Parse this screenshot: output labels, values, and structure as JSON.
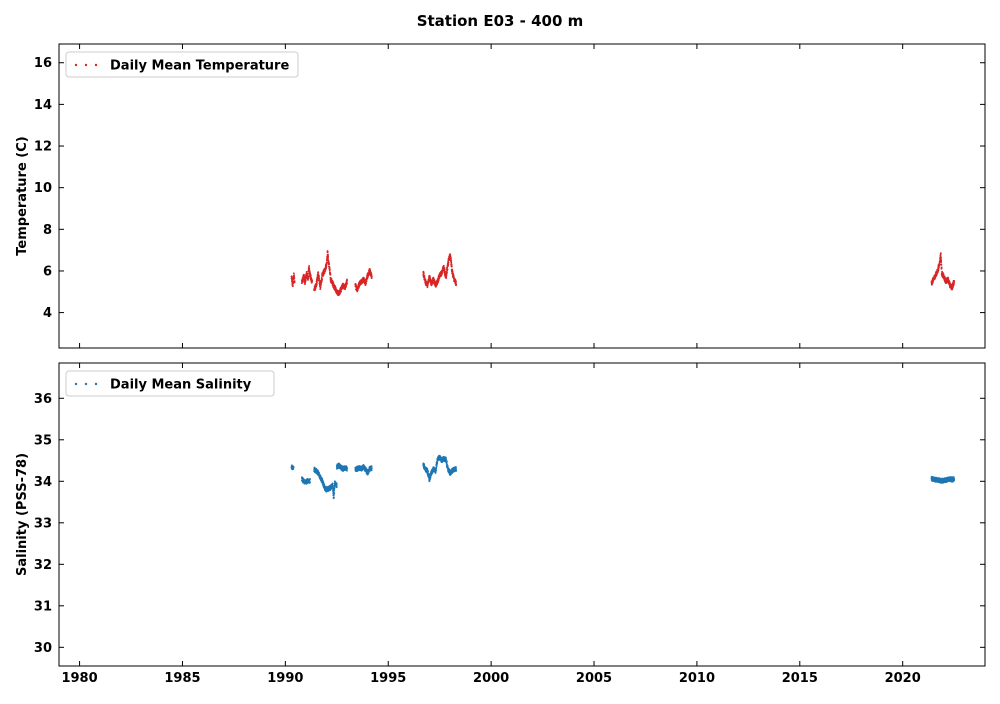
{
  "figure": {
    "title": "Station E03 - 400 m"
  },
  "chart_data": [
    {
      "type": "scatter",
      "series": [
        {
          "name": "Daily Mean Temperature",
          "color": "#d62728",
          "segments": [
            {
              "start": 1990.3,
              "end": 1990.45,
              "x": [
                1990.3,
                1990.33,
                1990.36,
                1990.39,
                1990.42,
                1990.45
              ],
              "y": [
                5.7,
                5.5,
                5.3,
                5.6,
                5.8,
                5.4
              ]
            },
            {
              "start": 1990.8,
              "end": 1991.3,
              "x": [
                1990.8,
                1990.85,
                1990.9,
                1990.95,
                1991.0,
                1991.05,
                1991.1,
                1991.15,
                1991.2,
                1991.25,
                1991.3
              ],
              "y": [
                5.5,
                5.6,
                5.8,
                5.4,
                5.7,
                5.9,
                5.6,
                6.2,
                5.8,
                5.6,
                5.5
              ]
            },
            {
              "start": 1991.4,
              "end": 1993.0,
              "x": [
                1991.4,
                1991.5,
                1991.6,
                1991.7,
                1991.8,
                1991.9,
                1992.0,
                1992.05,
                1992.1,
                1992.15,
                1992.2,
                1992.3,
                1992.4,
                1992.5,
                1992.6,
                1992.7,
                1992.8,
                1992.9,
                1993.0
              ],
              "y": [
                5.1,
                5.3,
                5.9,
                5.2,
                5.8,
                6.0,
                6.3,
                6.9,
                6.4,
                6.1,
                5.6,
                5.4,
                5.2,
                5.0,
                4.9,
                5.1,
                5.3,
                5.2,
                5.5
              ]
            },
            {
              "start": 1993.4,
              "end": 1994.2,
              "x": [
                1993.4,
                1993.5,
                1993.6,
                1993.7,
                1993.8,
                1993.9,
                1994.0,
                1994.1,
                1994.2
              ],
              "y": [
                5.3,
                5.1,
                5.4,
                5.5,
                5.6,
                5.4,
                5.8,
                6.0,
                5.7
              ]
            },
            {
              "start": 1996.7,
              "end": 1998.3,
              "x": [
                1996.7,
                1996.8,
                1996.9,
                1997.0,
                1997.1,
                1997.2,
                1997.3,
                1997.4,
                1997.5,
                1997.6,
                1997.7,
                1997.8,
                1997.9,
                1998.0,
                1998.05,
                1998.1,
                1998.2,
                1998.3
              ],
              "y": [
                5.9,
                5.5,
                5.3,
                5.7,
                5.4,
                5.6,
                5.3,
                5.5,
                5.8,
                5.9,
                6.2,
                5.7,
                6.3,
                6.8,
                6.5,
                6.0,
                5.6,
                5.4
              ]
            },
            {
              "start": 2021.4,
              "end": 2022.5,
              "x": [
                2021.4,
                2021.5,
                2021.6,
                2021.7,
                2021.8,
                2021.85,
                2021.9,
                2022.0,
                2022.1,
                2022.2,
                2022.3,
                2022.4,
                2022.5
              ],
              "y": [
                5.4,
                5.6,
                5.8,
                6.0,
                6.4,
                6.8,
                5.9,
                5.7,
                5.5,
                5.6,
                5.3,
                5.2,
                5.5
              ]
            }
          ]
        }
      ],
      "xlim": [
        1979,
        2024
      ],
      "ylim": [
        2.3,
        16.9
      ],
      "xticks": [
        1980,
        1985,
        1990,
        1995,
        2000,
        2005,
        2010,
        2015,
        2020
      ],
      "yticks": [
        4,
        6,
        8,
        10,
        12,
        14,
        16
      ],
      "xlabel": "",
      "ylabel": "Temperature (C)",
      "legend": "top-left",
      "grid": false
    },
    {
      "type": "scatter",
      "series": [
        {
          "name": "Daily Mean Salinity",
          "color": "#1f77b4",
          "segments": [
            {
              "start": 1990.3,
              "end": 1990.4,
              "x": [
                1990.3,
                1990.35,
                1990.4
              ],
              "y": [
                34.35,
                34.33,
                34.36
              ]
            },
            {
              "start": 1990.8,
              "end": 1991.2,
              "x": [
                1990.8,
                1990.9,
                1991.0,
                1991.1,
                1991.2
              ],
              "y": [
                34.05,
                34.0,
                33.98,
                34.02,
                34.0
              ]
            },
            {
              "start": 1991.4,
              "end": 1992.5,
              "x": [
                1991.4,
                1991.5,
                1991.6,
                1991.7,
                1991.8,
                1991.9,
                1992.0,
                1992.1,
                1992.2,
                1992.3,
                1992.35,
                1992.4,
                1992.5
              ],
              "y": [
                34.28,
                34.25,
                34.2,
                34.1,
                34.0,
                33.85,
                33.8,
                33.82,
                33.85,
                33.9,
                33.6,
                33.95,
                33.9
              ]
            },
            {
              "start": 1992.5,
              "end": 1993.0,
              "x": [
                1992.5,
                1992.6,
                1992.7,
                1992.8,
                1992.9,
                1993.0
              ],
              "y": [
                34.35,
                34.38,
                34.33,
                34.3,
                34.32,
                34.3
              ]
            },
            {
              "start": 1993.4,
              "end": 1994.2,
              "x": [
                1993.4,
                1993.5,
                1993.6,
                1993.7,
                1993.8,
                1993.9,
                1994.0,
                1994.1,
                1994.2
              ],
              "y": [
                34.28,
                34.3,
                34.32,
                34.3,
                34.35,
                34.28,
                34.2,
                34.3,
                34.32
              ]
            },
            {
              "start": 1996.7,
              "end": 1998.3,
              "x": [
                1996.7,
                1996.8,
                1996.9,
                1997.0,
                1997.1,
                1997.2,
                1997.3,
                1997.4,
                1997.5,
                1997.6,
                1997.7,
                1997.8,
                1997.9,
                1998.0,
                1998.1,
                1998.2,
                1998.3
              ],
              "y": [
                34.4,
                34.3,
                34.25,
                34.05,
                34.2,
                34.3,
                34.25,
                34.55,
                34.57,
                34.5,
                34.55,
                34.52,
                34.3,
                34.2,
                34.25,
                34.28,
                34.3
              ]
            },
            {
              "start": 2021.4,
              "end": 2022.5,
              "x": [
                2021.4,
                2021.5,
                2021.6,
                2021.7,
                2021.8,
                2021.9,
                2022.0,
                2022.1,
                2022.2,
                2022.3,
                2022.4,
                2022.5
              ],
              "y": [
                34.06,
                34.05,
                34.04,
                34.03,
                34.02,
                34.01,
                34.02,
                34.03,
                34.04,
                34.05,
                34.04,
                34.05
              ]
            }
          ]
        }
      ],
      "xlim": [
        1979,
        2024
      ],
      "ylim": [
        29.55,
        36.85
      ],
      "xticks": [
        1980,
        1985,
        1990,
        1995,
        2000,
        2005,
        2010,
        2015,
        2020
      ],
      "yticks": [
        30,
        31,
        32,
        33,
        34,
        35,
        36
      ],
      "xlabel": "",
      "ylabel": "Salinity (PSS-78)",
      "legend": "top-left",
      "grid": false
    }
  ]
}
